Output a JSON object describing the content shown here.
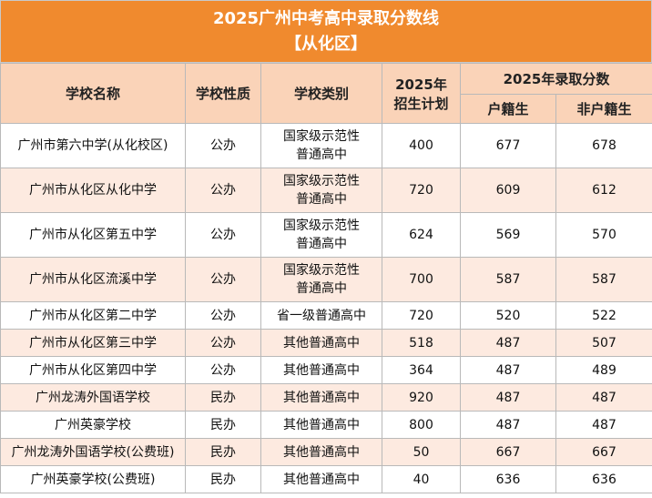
{
  "title": "2025广州中考高中录取分数线",
  "subtitle": "【从化区】",
  "headers": {
    "school_name": "学校名称",
    "school_nature": "学校性质",
    "school_type": "学校类别",
    "plan_line1": "2025年",
    "plan_line2": "招生计划",
    "score_group": "2025年录取分数",
    "local": "户籍生",
    "nonlocal": "非户籍生"
  },
  "rows": [
    {
      "name": "广州市第六中学(从化校区)",
      "nature": "公办",
      "type_line1": "国家级示范性",
      "type_line2": "普通高中",
      "plan": "400",
      "local": "677",
      "nonlocal": "678"
    },
    {
      "name": "广州市从化区从化中学",
      "nature": "公办",
      "type_line1": "国家级示范性",
      "type_line2": "普通高中",
      "plan": "720",
      "local": "609",
      "nonlocal": "612"
    },
    {
      "name": "广州市从化区第五中学",
      "nature": "公办",
      "type_line1": "国家级示范性",
      "type_line2": "普通高中",
      "plan": "624",
      "local": "569",
      "nonlocal": "570"
    },
    {
      "name": "广州市从化区流溪中学",
      "nature": "公办",
      "type_line1": "国家级示范性",
      "type_line2": "普通高中",
      "plan": "700",
      "local": "587",
      "nonlocal": "587"
    },
    {
      "name": "广州市从化区第二中学",
      "nature": "公办",
      "type_line1": "省一级普通高中",
      "type_line2": "",
      "plan": "720",
      "local": "520",
      "nonlocal": "522"
    },
    {
      "name": "广州市从化区第三中学",
      "nature": "公办",
      "type_line1": "其他普通高中",
      "type_line2": "",
      "plan": "518",
      "local": "487",
      "nonlocal": "507"
    },
    {
      "name": "广州市从化区第四中学",
      "nature": "公办",
      "type_line1": "其他普通高中",
      "type_line2": "",
      "plan": "364",
      "local": "487",
      "nonlocal": "489"
    },
    {
      "name": "广州龙涛外国语学校",
      "nature": "民办",
      "type_line1": "其他普通高中",
      "type_line2": "",
      "plan": "920",
      "local": "487",
      "nonlocal": "487"
    },
    {
      "name": "广州英豪学校",
      "nature": "民办",
      "type_line1": "其他普通高中",
      "type_line2": "",
      "plan": "800",
      "local": "487",
      "nonlocal": "487"
    },
    {
      "name": "广州龙涛外国语学校(公费班)",
      "nature": "民办",
      "type_line1": "其他普通高中",
      "type_line2": "",
      "plan": "50",
      "local": "667",
      "nonlocal": "667"
    },
    {
      "name": "广州英豪学校(公费班)",
      "nature": "民办",
      "type_line1": "其他普通高中",
      "type_line2": "",
      "plan": "40",
      "local": "636",
      "nonlocal": "636"
    }
  ],
  "colors": {
    "title_bg": "#f08a2e",
    "header_bg": "#fad3b8",
    "alt_row_bg": "#fdeae0"
  }
}
